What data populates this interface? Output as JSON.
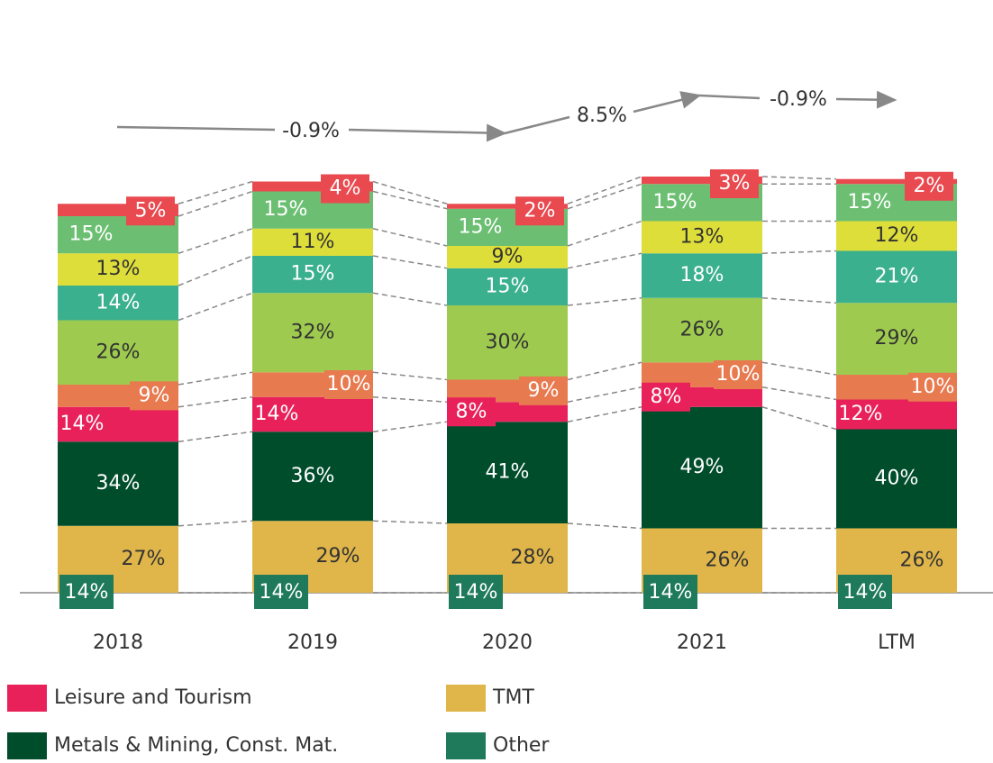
{
  "chart_data": {
    "type": "stacked_bar",
    "categories": [
      "2018",
      "2019",
      "2020",
      "2021",
      "LTM"
    ],
    "ylim": [
      0,
      200
    ],
    "series": [
      {
        "name": "TMT",
        "color": "#e0b64a",
        "values": [
          27,
          29,
          28,
          26,
          26
        ],
        "value_labels": [
          "27%",
          "29%",
          "28%",
          "26%",
          "26%"
        ]
      },
      {
        "name": "Metals & Mining, Const. Mat.",
        "color": "#004d2c",
        "values": [
          34,
          36,
          41,
          49,
          40
        ],
        "value_labels": [
          "34%",
          "36%",
          "41%",
          "49%",
          "40%"
        ]
      },
      {
        "name": "Leisure and Tourism",
        "color": "#e8215a",
        "values": [
          14,
          14,
          8,
          8,
          12
        ],
        "value_labels": [
          "14%",
          "14%",
          "8%",
          "8%",
          "12%"
        ]
      },
      {
        "color": "#e87a50",
        "values": [
          9,
          10,
          9,
          10,
          10
        ],
        "value_labels": [
          "9%",
          "10%",
          "9%",
          "10%",
          "10%"
        ]
      },
      {
        "color": "#9ecb4f",
        "values": [
          26,
          32,
          30,
          26,
          29
        ],
        "value_labels": [
          "26%",
          "32%",
          "30%",
          "26%",
          "29%"
        ]
      },
      {
        "color": "#3bb08f",
        "values": [
          14,
          15,
          15,
          18,
          21
        ],
        "value_labels": [
          "14%",
          "15%",
          "15%",
          "18%",
          "21%"
        ]
      },
      {
        "color": "#dede3a",
        "values": [
          13,
          11,
          9,
          13,
          12
        ],
        "value_labels": [
          "13%",
          "11%",
          "9%",
          "13%",
          "12%"
        ]
      },
      {
        "color": "#6cbf72",
        "values": [
          15,
          15,
          15,
          15,
          15
        ],
        "value_labels": [
          "15%",
          "15%",
          "15%",
          "15%",
          "15%"
        ]
      },
      {
        "color": "#e84a50",
        "values": [
          5,
          4,
          2,
          3,
          2
        ],
        "value_labels": [
          "5%",
          "4%",
          "2%",
          "3%",
          "2%"
        ]
      },
      {
        "name": "Other",
        "color": "#1e7a5a",
        "values": [
          14,
          14,
          14,
          14,
          14
        ],
        "value_labels": [
          "14%",
          "14%",
          "14%",
          "14%",
          "14%"
        ]
      }
    ],
    "annotations": [
      "-0.9%",
      "8.5%",
      "-0.9%"
    ]
  }
}
